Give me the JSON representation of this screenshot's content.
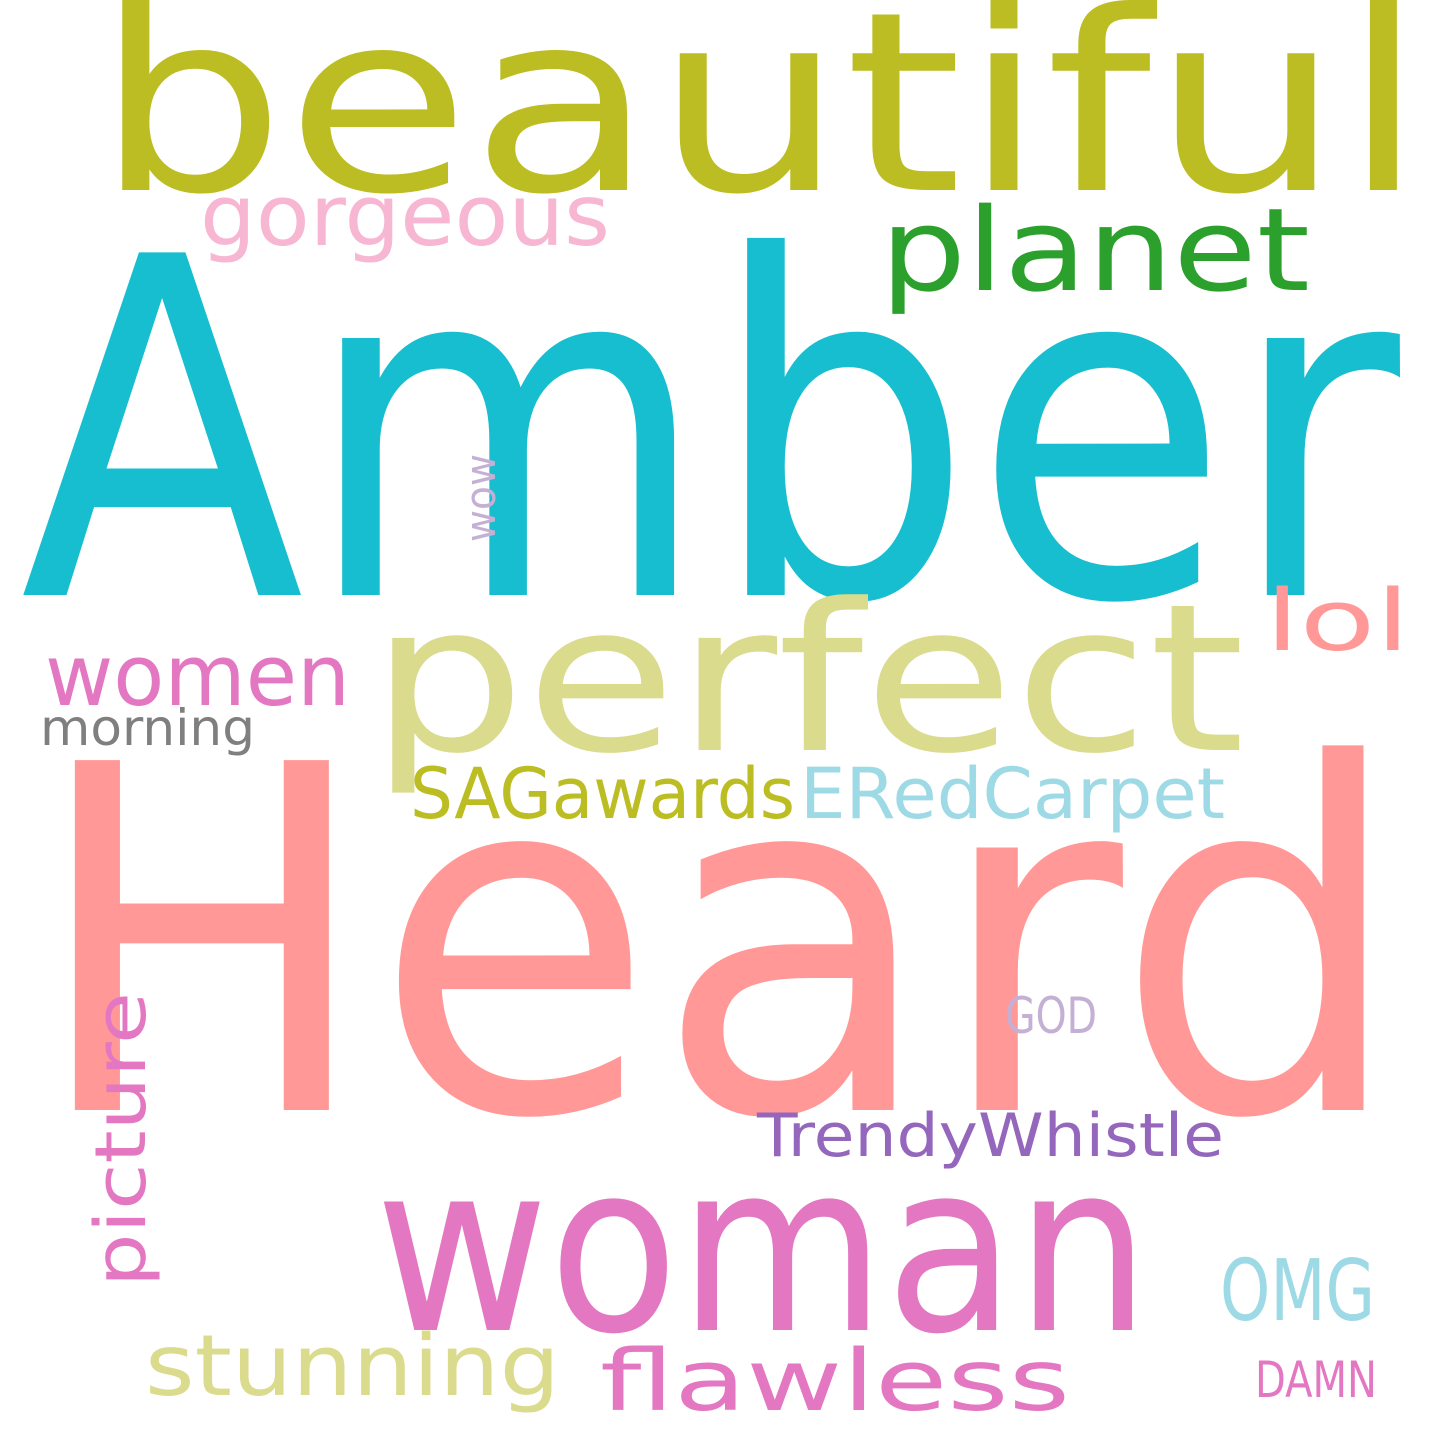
{
  "words": [
    {
      "key": "beautiful",
      "text": "beautiful",
      "color": "#bcbd22"
    },
    {
      "key": "amber",
      "text": "Amber",
      "color": "#17becf"
    },
    {
      "key": "heard",
      "text": "Heard",
      "color": "#ff9896"
    },
    {
      "key": "perfect",
      "text": "perfect",
      "color": "#dbdb8d"
    },
    {
      "key": "woman",
      "text": "woman",
      "color": "#e377c2"
    },
    {
      "key": "planet",
      "text": "planet",
      "color": "#2ca02c"
    },
    {
      "key": "gorgeous",
      "text": "gorgeous",
      "color": "#f7b6d2"
    },
    {
      "key": "women",
      "text": "women",
      "color": "#e377c2"
    },
    {
      "key": "lol",
      "text": "lol",
      "color": "#ff9896"
    },
    {
      "key": "morning",
      "text": "morning",
      "color": "#7f7f7f"
    },
    {
      "key": "sagawards",
      "text": "SAGawards",
      "color": "#bcbd22"
    },
    {
      "key": "eredcarpet",
      "text": "ERedCarpet",
      "color": "#9edae5"
    },
    {
      "key": "wow",
      "text": "wow",
      "color": "#c5b0d5"
    },
    {
      "key": "picture",
      "text": "picture",
      "color": "#e377c2"
    },
    {
      "key": "god",
      "text": "GOD",
      "color": "#c5b0d5"
    },
    {
      "key": "trendywhistle",
      "text": "TrendyWhistle",
      "color": "#9467bd"
    },
    {
      "key": "omg",
      "text": "OMG",
      "color": "#9edae5"
    },
    {
      "key": "stunning",
      "text": "stunning",
      "color": "#dbdb8d"
    },
    {
      "key": "flawless",
      "text": "flawless",
      "color": "#e377c2"
    },
    {
      "key": "damn",
      "text": "DAMN",
      "color": "#e377c2"
    }
  ]
}
